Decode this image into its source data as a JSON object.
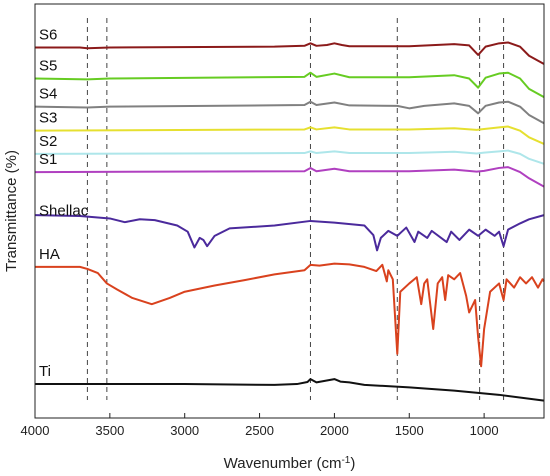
{
  "chart_data": {
    "type": "line",
    "xlabel": "Wavenumber (cm",
    "xlabel_sup": "-1",
    "xlabel_suffix": ")",
    "ylabel": "Transmittance (%)",
    "xlim": [
      4000,
      600
    ],
    "x_reversed": true,
    "x_ticks": [
      4000,
      3500,
      3000,
      2500,
      2000,
      1500,
      1000
    ],
    "y_ticks": "none",
    "grid": false,
    "legend": "inline-labels-left",
    "reference_lines": [
      3650,
      3520,
      2160,
      1580,
      1030,
      870
    ],
    "series": [
      {
        "name": "S6",
        "color": "#8b1a1a",
        "baseline": 0.895,
        "points": [
          [
            4000,
            0
          ],
          [
            3700,
            0
          ],
          [
            3650,
            -0.002
          ],
          [
            3500,
            0
          ],
          [
            2400,
            0.002
          ],
          [
            2200,
            0.004
          ],
          [
            2160,
            0.01
          ],
          [
            2120,
            0.004
          ],
          [
            2050,
            0.006
          ],
          [
            2000,
            0.01
          ],
          [
            1950,
            0.006
          ],
          [
            1900,
            0.003
          ],
          [
            1500,
            0.003
          ],
          [
            1200,
            0.008
          ],
          [
            1100,
            0.005
          ],
          [
            1040,
            -0.018
          ],
          [
            990,
            0.002
          ],
          [
            900,
            0.01
          ],
          [
            840,
            0.012
          ],
          [
            760,
            0.002
          ],
          [
            700,
            -0.02
          ],
          [
            600,
            -0.04
          ]
        ]
      },
      {
        "name": "S5",
        "color": "#66cc22",
        "baseline": 0.82,
        "points": [
          [
            4000,
            0
          ],
          [
            3650,
            -0.002
          ],
          [
            3500,
            0
          ],
          [
            2200,
            0.004
          ],
          [
            2160,
            0.014
          ],
          [
            2120,
            0.004
          ],
          [
            2000,
            0.012
          ],
          [
            1900,
            0.003
          ],
          [
            1500,
            0.003
          ],
          [
            1200,
            0.008
          ],
          [
            1100,
            0.0
          ],
          [
            1040,
            -0.022
          ],
          [
            990,
            0.002
          ],
          [
            900,
            0.012
          ],
          [
            840,
            0.014
          ],
          [
            760,
            0.0
          ],
          [
            700,
            -0.025
          ],
          [
            600,
            -0.045
          ]
        ]
      },
      {
        "name": "S4",
        "color": "#808080",
        "baseline": 0.752,
        "points": [
          [
            4000,
            0
          ],
          [
            3650,
            -0.002
          ],
          [
            3500,
            0
          ],
          [
            2200,
            0.004
          ],
          [
            2160,
            0.012
          ],
          [
            2120,
            0.004
          ],
          [
            2000,
            0.01
          ],
          [
            1900,
            0.003
          ],
          [
            1580,
            0.002
          ],
          [
            1500,
            -0.004
          ],
          [
            1400,
            0.002
          ],
          [
            1200,
            0.008
          ],
          [
            1100,
            0.002
          ],
          [
            1040,
            -0.016
          ],
          [
            990,
            0.002
          ],
          [
            900,
            0.01
          ],
          [
            840,
            0.012
          ],
          [
            760,
            0.0
          ],
          [
            700,
            -0.02
          ],
          [
            600,
            -0.04
          ]
        ]
      },
      {
        "name": "S3",
        "color": "#e6e030",
        "baseline": 0.694,
        "points": [
          [
            4000,
            0
          ],
          [
            2200,
            0.003
          ],
          [
            2160,
            0.008
          ],
          [
            2120,
            0.003
          ],
          [
            2000,
            0.008
          ],
          [
            1900,
            0.003
          ],
          [
            1500,
            0.003
          ],
          [
            1200,
            0.006
          ],
          [
            1050,
            0.002
          ],
          [
            1000,
            0.004
          ],
          [
            900,
            0.008
          ],
          [
            840,
            0.01
          ],
          [
            760,
            0.0
          ],
          [
            700,
            -0.016
          ],
          [
            600,
            -0.032
          ]
        ]
      },
      {
        "name": "S2",
        "color": "#aee6ea",
        "baseline": 0.638,
        "points": [
          [
            4000,
            0
          ],
          [
            2200,
            0.002
          ],
          [
            2160,
            0.006
          ],
          [
            2120,
            0.002
          ],
          [
            2000,
            0.006
          ],
          [
            1900,
            0.002
          ],
          [
            1500,
            0.002
          ],
          [
            1200,
            0.005
          ],
          [
            1050,
            0.001
          ],
          [
            1000,
            0.003
          ],
          [
            900,
            0.006
          ],
          [
            840,
            0.008
          ],
          [
            760,
            0.0
          ],
          [
            700,
            -0.012
          ],
          [
            600,
            -0.024
          ]
        ]
      },
      {
        "name": "S1",
        "color": "#b040c0",
        "baseline": 0.594,
        "points": [
          [
            4000,
            0
          ],
          [
            2200,
            0.002
          ],
          [
            2160,
            0.01
          ],
          [
            2120,
            0.002
          ],
          [
            2000,
            0.008
          ],
          [
            1900,
            0.002
          ],
          [
            1500,
            0.002
          ],
          [
            1200,
            0.006
          ],
          [
            1050,
            0.001
          ],
          [
            1000,
            0.003
          ],
          [
            900,
            0.01
          ],
          [
            840,
            0.012
          ],
          [
            760,
            0.0
          ],
          [
            700,
            -0.015
          ],
          [
            600,
            -0.035
          ]
        ]
      },
      {
        "name": "Shellac",
        "color": "#4b2a9c",
        "baseline": 0.47,
        "points": [
          [
            4000,
            0.02
          ],
          [
            3700,
            0.018
          ],
          [
            3500,
            0.012
          ],
          [
            3400,
            0.003
          ],
          [
            3300,
            0.01
          ],
          [
            3200,
            0.008
          ],
          [
            3050,
            -0.005
          ],
          [
            2980,
            -0.02
          ],
          [
            2935,
            -0.058
          ],
          [
            2900,
            -0.035
          ],
          [
            2875,
            -0.04
          ],
          [
            2850,
            -0.055
          ],
          [
            2800,
            -0.03
          ],
          [
            2700,
            -0.012
          ],
          [
            2400,
            -0.005
          ],
          [
            2160,
            0.006
          ],
          [
            2000,
            0.002
          ],
          [
            1800,
            -0.005
          ],
          [
            1740,
            -0.028
          ],
          [
            1715,
            -0.065
          ],
          [
            1690,
            -0.035
          ],
          [
            1640,
            -0.018
          ],
          [
            1580,
            -0.03
          ],
          [
            1550,
            -0.02
          ],
          [
            1520,
            -0.01
          ],
          [
            1465,
            -0.045
          ],
          [
            1440,
            -0.02
          ],
          [
            1380,
            -0.035
          ],
          [
            1350,
            -0.018
          ],
          [
            1250,
            -0.045
          ],
          [
            1220,
            -0.02
          ],
          [
            1165,
            -0.04
          ],
          [
            1100,
            -0.015
          ],
          [
            1040,
            -0.03
          ],
          [
            990,
            -0.015
          ],
          [
            930,
            -0.03
          ],
          [
            900,
            -0.02
          ],
          [
            870,
            -0.055
          ],
          [
            840,
            -0.015
          ],
          [
            760,
            0.0
          ],
          [
            700,
            0.01
          ],
          [
            600,
            0.02
          ]
        ]
      },
      {
        "name": "HA",
        "color": "#d9421e",
        "baseline": 0.365,
        "points": [
          [
            4000,
            0.0
          ],
          [
            3700,
            0.0
          ],
          [
            3650,
            -0.005
          ],
          [
            3580,
            -0.015
          ],
          [
            3520,
            -0.04
          ],
          [
            3450,
            -0.055
          ],
          [
            3350,
            -0.075
          ],
          [
            3220,
            -0.09
          ],
          [
            3100,
            -0.075
          ],
          [
            3000,
            -0.06
          ],
          [
            2800,
            -0.045
          ],
          [
            2600,
            -0.032
          ],
          [
            2400,
            -0.018
          ],
          [
            2200,
            -0.008
          ],
          [
            2160,
            0.005
          ],
          [
            2100,
            0.003
          ],
          [
            2000,
            0.008
          ],
          [
            1900,
            0.006
          ],
          [
            1800,
            0.0
          ],
          [
            1720,
            -0.01
          ],
          [
            1680,
            0.005
          ],
          [
            1650,
            -0.035
          ],
          [
            1640,
            -0.008
          ],
          [
            1610,
            -0.03
          ],
          [
            1580,
            -0.21
          ],
          [
            1560,
            -0.06
          ],
          [
            1500,
            -0.04
          ],
          [
            1450,
            -0.025
          ],
          [
            1420,
            -0.09
          ],
          [
            1400,
            -0.04
          ],
          [
            1380,
            -0.03
          ],
          [
            1340,
            -0.15
          ],
          [
            1310,
            -0.04
          ],
          [
            1280,
            -0.025
          ],
          [
            1260,
            -0.08
          ],
          [
            1240,
            -0.02
          ],
          [
            1200,
            -0.03
          ],
          [
            1160,
            -0.015
          ],
          [
            1120,
            -0.07
          ],
          [
            1100,
            -0.11
          ],
          [
            1060,
            -0.08
          ],
          [
            1040,
            -0.17
          ],
          [
            1020,
            -0.24
          ],
          [
            1000,
            -0.15
          ],
          [
            960,
            -0.06
          ],
          [
            900,
            -0.04
          ],
          [
            870,
            -0.08
          ],
          [
            850,
            -0.03
          ],
          [
            800,
            -0.05
          ],
          [
            760,
            -0.025
          ],
          [
            720,
            -0.04
          ],
          [
            680,
            -0.025
          ],
          [
            640,
            -0.05
          ],
          [
            610,
            -0.03
          ],
          [
            600,
            -0.035
          ]
        ]
      },
      {
        "name": "Ti",
        "color": "#111111",
        "baseline": 0.082,
        "points": [
          [
            4000,
            0.0
          ],
          [
            3000,
            0.0
          ],
          [
            2400,
            -0.002
          ],
          [
            2250,
            0.0
          ],
          [
            2180,
            0.005
          ],
          [
            2160,
            0.012
          ],
          [
            2120,
            0.004
          ],
          [
            2060,
            0.008
          ],
          [
            2000,
            0.012
          ],
          [
            1960,
            0.006
          ],
          [
            1900,
            0.004
          ],
          [
            1800,
            -0.002
          ],
          [
            1500,
            -0.008
          ],
          [
            1200,
            -0.016
          ],
          [
            900,
            -0.026
          ],
          [
            600,
            -0.04
          ]
        ]
      }
    ]
  }
}
